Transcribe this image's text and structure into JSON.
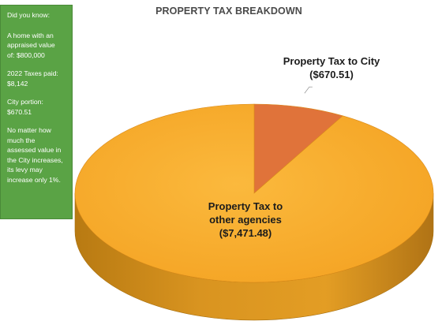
{
  "sidebar": {
    "paragraphs": [
      "Did you know:",
      "A home with an\nappraised value\nof: $800,000",
      "2022 Taxes paid:\n$8,142",
      "City portion:\n$670.51",
      "No matter how\nmuch the\nassessed value in\nthe City increases,\nits levy may\nincrease only 1%."
    ]
  },
  "chart_data": {
    "type": "pie",
    "title": "PROPERTY TAX BREAKDOWN",
    "slices": [
      {
        "name": "Property Tax to City",
        "value": 670.51,
        "label": "Property Tax to City\n($670.51)",
        "color": "#e0733a"
      },
      {
        "name": "Property Tax to other agencies",
        "value": 7471.48,
        "label": "Property Tax to\nother agencies\n($7,471.48)",
        "color": "#f9ad2d"
      }
    ],
    "legend": "none",
    "style": "3d"
  }
}
